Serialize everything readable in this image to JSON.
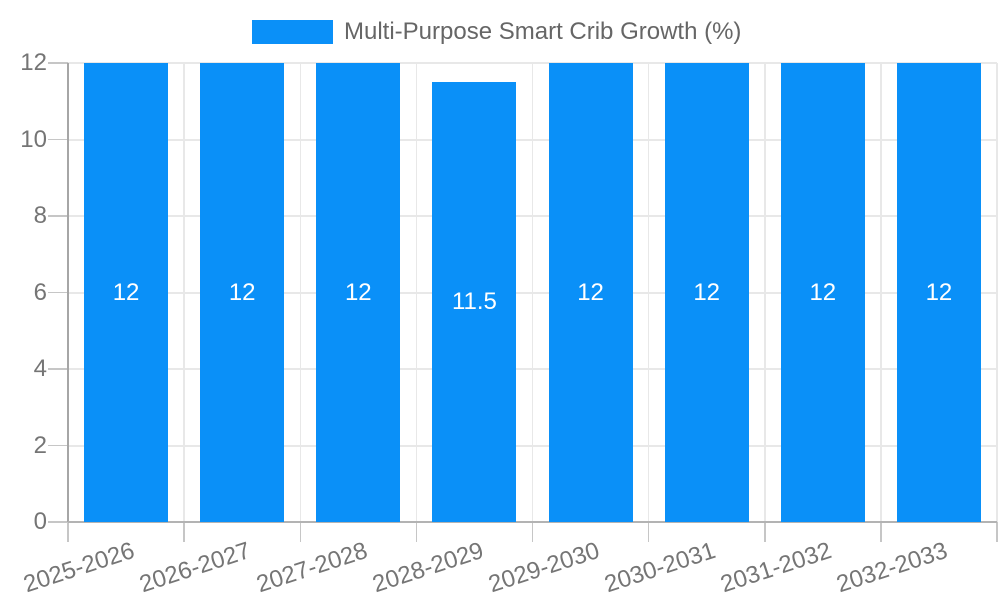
{
  "legend": {
    "label": "Multi-Purpose Smart Crib Growth (%)"
  },
  "colors": {
    "bar": "#0a90f8",
    "grid_line": "#e8e8e8",
    "x_axis_line": "#b3b3b3",
    "y_axis_line": "#a6a6a6",
    "tick_mark": "#c6c6c6",
    "tick_label": "#757575",
    "legend_text": "#666666",
    "bar_label": "#ffffff"
  },
  "chart_data": {
    "type": "bar",
    "title": "Multi-Purpose Smart Crib Growth (%)",
    "categories": [
      "2025-2026",
      "2026-2027",
      "2027-2028",
      "2028-2029",
      "2029-2030",
      "2030-2031",
      "2031-2032",
      "2032-2033"
    ],
    "values": [
      12,
      12,
      12,
      11.5,
      12,
      12,
      12,
      12
    ],
    "bar_labels": [
      "12",
      "12",
      "12",
      "11.5",
      "12",
      "12",
      "12",
      "12"
    ],
    "series": [
      {
        "name": "Multi-Purpose Smart Crib Growth (%)",
        "values": [
          12,
          12,
          12,
          11.5,
          12,
          12,
          12,
          12
        ]
      }
    ],
    "xlabel": "",
    "ylabel": "",
    "ylim": [
      0,
      12
    ],
    "yticks": [
      0,
      2,
      4,
      6,
      8,
      10,
      12
    ],
    "grid": true,
    "legend_position": "top-center",
    "bar_label_position": "middle"
  }
}
